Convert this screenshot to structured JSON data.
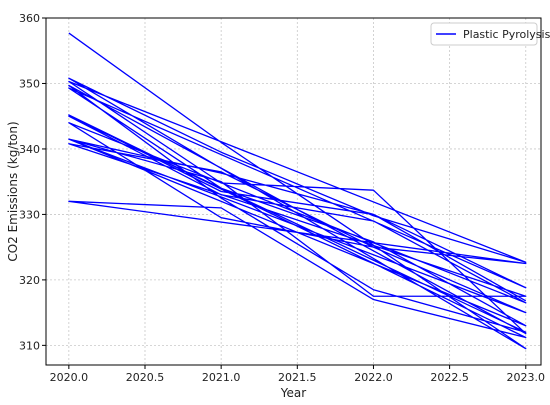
{
  "chart_data": {
    "type": "line",
    "title": "",
    "xlabel": "Year",
    "ylabel": "CO2 Emissions (kg/ton)",
    "xlim": [
      2019.85,
      2023.1
    ],
    "ylim": [
      307,
      360
    ],
    "x_ticks": [
      2020.0,
      2020.5,
      2021.0,
      2021.5,
      2022.0,
      2022.5,
      2023.0
    ],
    "x_tick_labels": [
      "2020.0",
      "2020.5",
      "2021.0",
      "2021.5",
      "2022.0",
      "2022.5",
      "2023.0"
    ],
    "y_ticks": [
      310,
      320,
      330,
      340,
      350,
      360
    ],
    "y_tick_labels": [
      "310",
      "320",
      "330",
      "340",
      "350",
      "360"
    ],
    "grid": true,
    "legend": {
      "position": "top-right",
      "entries": [
        "Plastic Pyrolysis"
      ]
    },
    "line_color": "#0000ff",
    "x": [
      2020.0,
      2021.0,
      2022.0,
      2023.0,
      2020.0,
      2021.0,
      2022.0,
      2023.0,
      2020.0,
      2021.0,
      2022.0,
      2023.0,
      2020.0,
      2021.0,
      2022.0,
      2023.0,
      2020.0,
      2021.0,
      2022.0,
      2023.0,
      2020.0,
      2021.0,
      2022.0,
      2023.0,
      2020.0,
      2021.0,
      2022.0,
      2023.0,
      2020.0,
      2021.0,
      2022.0,
      2023.0,
      2020.0,
      2021.0,
      2022.0,
      2023.0,
      2020.0,
      2021.0,
      2022.0,
      2023.0,
      2020.0,
      2021.0,
      2022.0,
      2023.0,
      2020.0,
      2021.0,
      2022.0,
      2023.0
    ],
    "series": [
      {
        "name": "Plastic Pyrolysis",
        "y": [
          357.7,
          341.0,
          325.3,
          309.5,
          350.8,
          339.5,
          329.8,
          322.7,
          350.3,
          334.8,
          333.7,
          311.8,
          349.7,
          332.5,
          318.5,
          312.0,
          345.0,
          333.0,
          329.0,
          316.5,
          344.0,
          329.5,
          325.0,
          315.0,
          341.5,
          335.0,
          317.5,
          317.5,
          340.8,
          336.5,
          325.0,
          322.5,
          332.0,
          331.0,
          317.0,
          311.2,
          345.2,
          333.5,
          330.0,
          318.8,
          349.3,
          334.0,
          325.8,
          313.0,
          341.5,
          336.3,
          330.0,
          316.8
        ]
      }
    ]
  }
}
